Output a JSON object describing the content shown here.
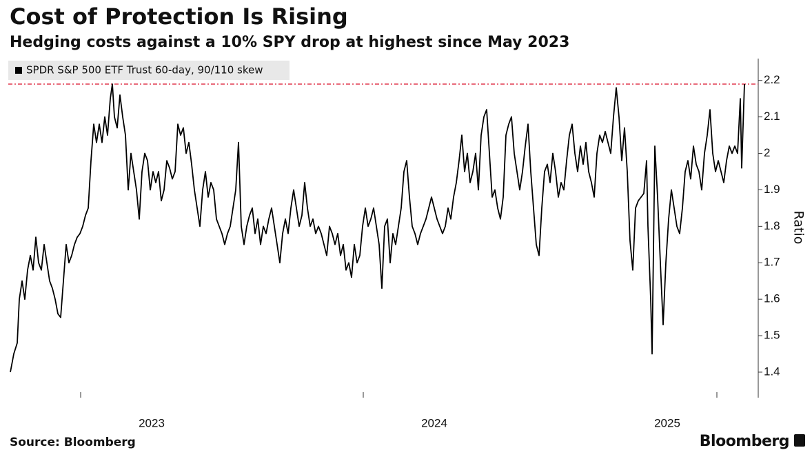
{
  "chart_data": {
    "type": "line",
    "title": "Cost of Protection Is Rising",
    "subtitle": "Hedging costs against a 10% SPY drop at highest since May 2023",
    "y_label": "Ratio",
    "source": "Source: Bloomberg",
    "brand": "Bloomberg",
    "xlim": [
      0,
      1065
    ],
    "xticks": [
      {
        "value": 205,
        "label": "2023"
      },
      {
        "value": 615,
        "label": "2024"
      },
      {
        "value": 953,
        "label": "2025"
      }
    ],
    "xminorticks": [
      102,
      512,
      1025
    ],
    "ylim": [
      1.33,
      2.26
    ],
    "yticks": [
      1.4,
      1.5,
      1.6,
      1.7,
      1.8,
      1.9,
      2.0,
      2.1,
      2.2
    ],
    "reference_line": {
      "value": 2.19,
      "color": "#e0384f"
    },
    "series": [
      {
        "name": "SPDR S&P 500 ETF Trust 60-day, 90/110 skew",
        "color": "#000000",
        "x": [
          0,
          5,
          10,
          13,
          17,
          21,
          25,
          29,
          33,
          37,
          41,
          45,
          49,
          53,
          57,
          61,
          65,
          69,
          73,
          77,
          81,
          85,
          89,
          93,
          97,
          101,
          105,
          109,
          113,
          117,
          121,
          125,
          129,
          133,
          137,
          141,
          145,
          148,
          151,
          155,
          159,
          163,
          167,
          171,
          175,
          179,
          183,
          187,
          191,
          195,
          199,
          203,
          207,
          211,
          215,
          219,
          223,
          227,
          231,
          235,
          239,
          243,
          247,
          251,
          255,
          259,
          263,
          267,
          271,
          275,
          279,
          283,
          287,
          291,
          295,
          299,
          303,
          307,
          311,
          315,
          319,
          323,
          327,
          331,
          335,
          339,
          343,
          347,
          351,
          355,
          359,
          363,
          367,
          371,
          375,
          379,
          383,
          387,
          391,
          395,
          399,
          403,
          407,
          411,
          415,
          419,
          423,
          427,
          431,
          435,
          439,
          443,
          447,
          451,
          455,
          459,
          463,
          467,
          471,
          475,
          479,
          483,
          487,
          491,
          495,
          499,
          503,
          507,
          511,
          515,
          519,
          523,
          527,
          531,
          535,
          539,
          543,
          547,
          551,
          555,
          559,
          563,
          567,
          571,
          575,
          579,
          583,
          587,
          591,
          595,
          599,
          603,
          607,
          611,
          615,
          619,
          623,
          627,
          631,
          635,
          639,
          643,
          647,
          651,
          655,
          659,
          663,
          667,
          671,
          675,
          679,
          683,
          687,
          691,
          695,
          699,
          703,
          707,
          711,
          715,
          719,
          723,
          727,
          731,
          735,
          739,
          743,
          747,
          751,
          755,
          759,
          763,
          767,
          771,
          775,
          779,
          783,
          787,
          791,
          795,
          799,
          803,
          807,
          811,
          815,
          819,
          823,
          827,
          831,
          835,
          839,
          843,
          847,
          851,
          855,
          859,
          863,
          867,
          871,
          875,
          879,
          883,
          887,
          891,
          895,
          899,
          903,
          907,
          911,
          915,
          919,
          923,
          925,
          929,
          931,
          935,
          939,
          943,
          947,
          951,
          955,
          959,
          963,
          967,
          971,
          975,
          979,
          983,
          987,
          991,
          995,
          999,
          1003,
          1007,
          1011,
          1015,
          1019,
          1023,
          1027,
          1031,
          1035,
          1039,
          1043,
          1047,
          1051,
          1055,
          1059,
          1061,
          1065
        ],
        "values": [
          1.4,
          1.45,
          1.48,
          1.6,
          1.65,
          1.6,
          1.68,
          1.72,
          1.68,
          1.77,
          1.7,
          1.68,
          1.75,
          1.7,
          1.65,
          1.63,
          1.6,
          1.56,
          1.55,
          1.65,
          1.75,
          1.7,
          1.72,
          1.75,
          1.77,
          1.78,
          1.8,
          1.83,
          1.85,
          1.98,
          2.08,
          2.03,
          2.08,
          2.03,
          2.1,
          2.05,
          2.15,
          2.19,
          2.1,
          2.07,
          2.16,
          2.1,
          2.05,
          1.9,
          2.0,
          1.95,
          1.9,
          1.82,
          1.95,
          2.0,
          1.98,
          1.9,
          1.95,
          1.92,
          1.95,
          1.87,
          1.9,
          1.98,
          1.96,
          1.93,
          1.95,
          2.08,
          2.05,
          2.07,
          2.0,
          2.03,
          1.97,
          1.9,
          1.85,
          1.8,
          1.9,
          1.95,
          1.88,
          1.92,
          1.9,
          1.82,
          1.8,
          1.78,
          1.75,
          1.78,
          1.8,
          1.85,
          1.9,
          2.03,
          1.8,
          1.75,
          1.8,
          1.83,
          1.85,
          1.78,
          1.82,
          1.75,
          1.8,
          1.78,
          1.82,
          1.85,
          1.8,
          1.75,
          1.7,
          1.78,
          1.82,
          1.78,
          1.85,
          1.9,
          1.85,
          1.8,
          1.83,
          1.92,
          1.85,
          1.8,
          1.82,
          1.78,
          1.8,
          1.78,
          1.75,
          1.72,
          1.8,
          1.78,
          1.75,
          1.78,
          1.72,
          1.75,
          1.68,
          1.7,
          1.66,
          1.75,
          1.7,
          1.72,
          1.8,
          1.85,
          1.8,
          1.82,
          1.85,
          1.8,
          1.75,
          1.63,
          1.8,
          1.82,
          1.7,
          1.78,
          1.75,
          1.8,
          1.85,
          1.95,
          1.98,
          1.88,
          1.8,
          1.78,
          1.75,
          1.78,
          1.8,
          1.82,
          1.85,
          1.88,
          1.85,
          1.82,
          1.8,
          1.78,
          1.8,
          1.85,
          1.82,
          1.88,
          1.92,
          1.98,
          2.05,
          1.95,
          2.0,
          1.92,
          1.95,
          2.0,
          1.9,
          2.05,
          2.1,
          2.12,
          2.0,
          1.88,
          1.9,
          1.85,
          1.82,
          1.88,
          2.05,
          2.08,
          2.1,
          2.0,
          1.95,
          1.9,
          1.95,
          2.02,
          2.08,
          1.95,
          1.85,
          1.75,
          1.72,
          1.85,
          1.95,
          1.97,
          1.92,
          2.0,
          1.95,
          1.88,
          1.92,
          1.9,
          1.98,
          2.05,
          2.08,
          2.0,
          1.95,
          2.02,
          1.97,
          2.03,
          1.95,
          1.92,
          1.88,
          2.0,
          2.05,
          2.03,
          2.06,
          2.03,
          2.0,
          2.1,
          2.18,
          2.1,
          1.98,
          2.07,
          1.95,
          1.76,
          1.68,
          1.85,
          1.87,
          1.88,
          1.89,
          1.98,
          1.8,
          1.6,
          1.45,
          2.02,
          1.88,
          1.7,
          1.53,
          1.7,
          1.82,
          1.9,
          1.85,
          1.8,
          1.78,
          1.85,
          1.95,
          1.98,
          1.93,
          2.02,
          1.97,
          1.95,
          1.9,
          2.0,
          2.05,
          2.12,
          2.0,
          1.95,
          1.98,
          1.95,
          1.92,
          1.98,
          2.02,
          2.0,
          2.02,
          2.0,
          2.15,
          1.96,
          2.19
        ]
      }
    ]
  }
}
